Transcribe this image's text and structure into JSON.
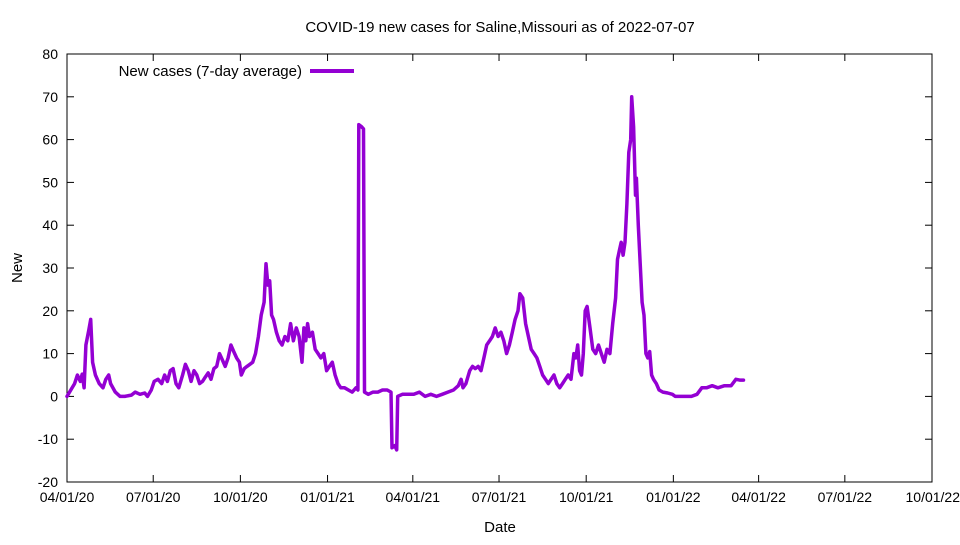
{
  "chart_data": {
    "type": "line",
    "title": "COVID-19 new cases for Saline,Missouri as of 2022-07-07",
    "xlabel": "Date",
    "ylabel": "New",
    "ylim": [
      -20,
      80
    ],
    "yticks": [
      -20,
      -10,
      0,
      10,
      20,
      30,
      40,
      50,
      60,
      70,
      80
    ],
    "xlim": [
      "2020-04-01",
      "2022-10-01"
    ],
    "xticks": [
      {
        "date": "2020-04-01",
        "label": "04/01/20"
      },
      {
        "date": "2020-07-01",
        "label": "07/01/20"
      },
      {
        "date": "2020-10-01",
        "label": "10/01/20"
      },
      {
        "date": "2021-01-01",
        "label": "01/01/21"
      },
      {
        "date": "2021-04-01",
        "label": "04/01/21"
      },
      {
        "date": "2021-07-01",
        "label": "07/01/21"
      },
      {
        "date": "2021-10-01",
        "label": "10/01/21"
      },
      {
        "date": "2022-01-01",
        "label": "01/01/22"
      },
      {
        "date": "2022-04-01",
        "label": "04/01/22"
      },
      {
        "date": "2022-07-01",
        "label": "07/01/22"
      },
      {
        "date": "2022-10-01",
        "label": "10/01/22"
      }
    ],
    "grid": false,
    "legend_position": "top-left",
    "series": [
      {
        "name": "New cases (7-day average)",
        "color": "#9400d3",
        "points": [
          [
            "2020-04-01",
            0.0
          ],
          [
            "2020-04-05",
            1.5
          ],
          [
            "2020-04-09",
            3.0
          ],
          [
            "2020-04-12",
            5.0
          ],
          [
            "2020-04-15",
            3.5
          ],
          [
            "2020-04-17",
            5.2
          ],
          [
            "2020-04-19",
            2.0
          ],
          [
            "2020-04-21",
            12.0
          ],
          [
            "2020-04-24",
            15.5
          ],
          [
            "2020-04-26",
            18.0
          ],
          [
            "2020-04-28",
            8.0
          ],
          [
            "2020-05-01",
            5.0
          ],
          [
            "2020-05-05",
            3.0
          ],
          [
            "2020-05-09",
            2.0
          ],
          [
            "2020-05-12",
            4.0
          ],
          [
            "2020-05-15",
            5.0
          ],
          [
            "2020-05-17",
            3.0
          ],
          [
            "2020-05-22",
            1.0
          ],
          [
            "2020-05-27",
            0.0
          ],
          [
            "2020-06-01",
            0.0
          ],
          [
            "2020-06-08",
            0.3
          ],
          [
            "2020-06-12",
            1.0
          ],
          [
            "2020-06-17",
            0.5
          ],
          [
            "2020-06-22",
            0.8
          ],
          [
            "2020-06-25",
            0.0
          ],
          [
            "2020-06-29",
            1.5
          ],
          [
            "2020-07-02",
            3.5
          ],
          [
            "2020-07-06",
            4.0
          ],
          [
            "2020-07-10",
            3.0
          ],
          [
            "2020-07-13",
            5.0
          ],
          [
            "2020-07-16",
            3.5
          ],
          [
            "2020-07-19",
            6.0
          ],
          [
            "2020-07-22",
            6.5
          ],
          [
            "2020-07-25",
            3.0
          ],
          [
            "2020-07-28",
            2.0
          ],
          [
            "2020-08-01",
            5.0
          ],
          [
            "2020-08-04",
            7.5
          ],
          [
            "2020-08-07",
            6.0
          ],
          [
            "2020-08-10",
            3.5
          ],
          [
            "2020-08-13",
            6.0
          ],
          [
            "2020-08-16",
            5.0
          ],
          [
            "2020-08-19",
            3.0
          ],
          [
            "2020-08-22",
            3.5
          ],
          [
            "2020-08-25",
            4.5
          ],
          [
            "2020-08-28",
            5.5
          ],
          [
            "2020-08-31",
            4.0
          ],
          [
            "2020-09-03",
            6.5
          ],
          [
            "2020-09-06",
            7.0
          ],
          [
            "2020-09-09",
            10.0
          ],
          [
            "2020-09-12",
            8.5
          ],
          [
            "2020-09-15",
            7.0
          ],
          [
            "2020-09-18",
            9.0
          ],
          [
            "2020-09-21",
            12.0
          ],
          [
            "2020-09-24",
            10.5
          ],
          [
            "2020-09-27",
            9.0
          ],
          [
            "2020-09-30",
            8.0
          ],
          [
            "2020-10-02",
            5.0
          ],
          [
            "2020-10-05",
            6.5
          ],
          [
            "2020-10-08",
            7.0
          ],
          [
            "2020-10-11",
            7.5
          ],
          [
            "2020-10-14",
            8.0
          ],
          [
            "2020-10-17",
            10.0
          ],
          [
            "2020-10-20",
            14.0
          ],
          [
            "2020-10-23",
            19.0
          ],
          [
            "2020-10-26",
            22.0
          ],
          [
            "2020-10-28",
            31.0
          ],
          [
            "2020-10-30",
            26.0
          ],
          [
            "2020-11-01",
            27.0
          ],
          [
            "2020-11-03",
            19.0
          ],
          [
            "2020-11-05",
            18.0
          ],
          [
            "2020-11-08",
            15.0
          ],
          [
            "2020-11-11",
            13.0
          ],
          [
            "2020-11-14",
            12.0
          ],
          [
            "2020-11-17",
            14.0
          ],
          [
            "2020-11-20",
            13.0
          ],
          [
            "2020-11-23",
            17.0
          ],
          [
            "2020-11-26",
            13.0
          ],
          [
            "2020-11-29",
            16.0
          ],
          [
            "2020-12-02",
            14.0
          ],
          [
            "2020-12-05",
            8.0
          ],
          [
            "2020-12-07",
            16.0
          ],
          [
            "2020-12-09",
            13.0
          ],
          [
            "2020-12-11",
            17.0
          ],
          [
            "2020-12-13",
            14.0
          ],
          [
            "2020-12-16",
            15.0
          ],
          [
            "2020-12-19",
            11.0
          ],
          [
            "2020-12-22",
            10.0
          ],
          [
            "2020-12-25",
            9.0
          ],
          [
            "2020-12-28",
            10.0
          ],
          [
            "2020-12-31",
            6.0
          ],
          [
            "2021-01-03",
            7.0
          ],
          [
            "2021-01-06",
            8.0
          ],
          [
            "2021-01-09",
            5.0
          ],
          [
            "2021-01-12",
            3.0
          ],
          [
            "2021-01-15",
            2.0
          ],
          [
            "2021-01-19",
            2.0
          ],
          [
            "2021-01-23",
            1.5
          ],
          [
            "2021-01-27",
            1.0
          ],
          [
            "2021-01-31",
            2.0
          ],
          [
            "2021-02-02",
            1.5
          ],
          [
            "2021-02-03",
            63.5
          ],
          [
            "2021-02-06",
            63.0
          ],
          [
            "2021-02-08",
            62.5
          ],
          [
            "2021-02-09",
            1.0
          ],
          [
            "2021-02-13",
            0.5
          ],
          [
            "2021-02-18",
            1.0
          ],
          [
            "2021-02-23",
            1.0
          ],
          [
            "2021-02-28",
            1.5
          ],
          [
            "2021-03-05",
            1.5
          ],
          [
            "2021-03-09",
            1.0
          ],
          [
            "2021-03-10",
            -12.0
          ],
          [
            "2021-03-13",
            -11.5
          ],
          [
            "2021-03-15",
            -12.5
          ],
          [
            "2021-03-16",
            0.0
          ],
          [
            "2021-03-21",
            0.5
          ],
          [
            "2021-03-27",
            0.5
          ],
          [
            "2021-04-02",
            0.5
          ],
          [
            "2021-04-08",
            1.0
          ],
          [
            "2021-04-14",
            0.0
          ],
          [
            "2021-04-20",
            0.5
          ],
          [
            "2021-04-26",
            0.0
          ],
          [
            "2021-05-02",
            0.5
          ],
          [
            "2021-05-08",
            1.0
          ],
          [
            "2021-05-14",
            1.5
          ],
          [
            "2021-05-19",
            2.5
          ],
          [
            "2021-05-22",
            4.0
          ],
          [
            "2021-05-24",
            2.0
          ],
          [
            "2021-05-27",
            3.0
          ],
          [
            "2021-05-31",
            6.0
          ],
          [
            "2021-06-03",
            7.0
          ],
          [
            "2021-06-06",
            6.5
          ],
          [
            "2021-06-09",
            7.0
          ],
          [
            "2021-06-12",
            6.0
          ],
          [
            "2021-06-15",
            9.0
          ],
          [
            "2021-06-18",
            12.0
          ],
          [
            "2021-06-21",
            13.0
          ],
          [
            "2021-06-24",
            14.0
          ],
          [
            "2021-06-27",
            16.0
          ],
          [
            "2021-06-30",
            14.0
          ],
          [
            "2021-07-03",
            15.0
          ],
          [
            "2021-07-06",
            13.0
          ],
          [
            "2021-07-09",
            10.0
          ],
          [
            "2021-07-12",
            12.0
          ],
          [
            "2021-07-15",
            15.0
          ],
          [
            "2021-07-18",
            18.0
          ],
          [
            "2021-07-21",
            20.0
          ],
          [
            "2021-07-23",
            24.0
          ],
          [
            "2021-07-26",
            23.0
          ],
          [
            "2021-07-29",
            17.0
          ],
          [
            "2021-08-01",
            14.0
          ],
          [
            "2021-08-04",
            11.0
          ],
          [
            "2021-08-07",
            10.0
          ],
          [
            "2021-08-10",
            9.0
          ],
          [
            "2021-08-13",
            7.0
          ],
          [
            "2021-08-16",
            5.0
          ],
          [
            "2021-08-19",
            4.0
          ],
          [
            "2021-08-22",
            3.0
          ],
          [
            "2021-08-25",
            4.0
          ],
          [
            "2021-08-28",
            5.0
          ],
          [
            "2021-08-31",
            3.0
          ],
          [
            "2021-09-03",
            2.0
          ],
          [
            "2021-09-06",
            3.0
          ],
          [
            "2021-09-09",
            4.0
          ],
          [
            "2021-09-12",
            5.0
          ],
          [
            "2021-09-15",
            4.0
          ],
          [
            "2021-09-18",
            10.0
          ],
          [
            "2021-09-20",
            9.0
          ],
          [
            "2021-09-22",
            12.0
          ],
          [
            "2021-09-24",
            6.0
          ],
          [
            "2021-09-26",
            5.0
          ],
          [
            "2021-09-28",
            10.0
          ],
          [
            "2021-09-30",
            20.0
          ],
          [
            "2021-10-02",
            21.0
          ],
          [
            "2021-10-05",
            16.0
          ],
          [
            "2021-10-08",
            11.0
          ],
          [
            "2021-10-11",
            10.0
          ],
          [
            "2021-10-14",
            12.0
          ],
          [
            "2021-10-17",
            10.0
          ],
          [
            "2021-10-20",
            8.0
          ],
          [
            "2021-10-23",
            11.0
          ],
          [
            "2021-10-26",
            10.0
          ],
          [
            "2021-10-29",
            17.0
          ],
          [
            "2021-11-01",
            23.0
          ],
          [
            "2021-11-03",
            32.0
          ],
          [
            "2021-11-05",
            34.0
          ],
          [
            "2021-11-07",
            36.0
          ],
          [
            "2021-11-09",
            33.0
          ],
          [
            "2021-11-11",
            36.0
          ],
          [
            "2021-11-13",
            45.0
          ],
          [
            "2021-11-15",
            57.0
          ],
          [
            "2021-11-17",
            60.0
          ],
          [
            "2021-11-18",
            70.0
          ],
          [
            "2021-11-20",
            63.0
          ],
          [
            "2021-11-22",
            47.0
          ],
          [
            "2021-11-23",
            51.0
          ],
          [
            "2021-11-25",
            40.0
          ],
          [
            "2021-11-27",
            31.0
          ],
          [
            "2021-11-29",
            22.0
          ],
          [
            "2021-12-01",
            19.0
          ],
          [
            "2021-12-03",
            10.0
          ],
          [
            "2021-12-05",
            9.0
          ],
          [
            "2021-12-07",
            10.5
          ],
          [
            "2021-12-09",
            5.0
          ],
          [
            "2021-12-11",
            4.0
          ],
          [
            "2021-12-14",
            3.0
          ],
          [
            "2021-12-17",
            1.5
          ],
          [
            "2021-12-21",
            1.0
          ],
          [
            "2021-12-26",
            0.8
          ],
          [
            "2021-12-31",
            0.5
          ],
          [
            "2022-01-03",
            0.0
          ],
          [
            "2022-01-10",
            0.0
          ],
          [
            "2022-01-20",
            0.0
          ],
          [
            "2022-01-26",
            0.5
          ],
          [
            "2022-01-31",
            2.0
          ],
          [
            "2022-02-05",
            2.0
          ],
          [
            "2022-02-11",
            2.5
          ],
          [
            "2022-02-17",
            2.0
          ],
          [
            "2022-02-24",
            2.5
          ],
          [
            "2022-03-03",
            2.5
          ],
          [
            "2022-03-08",
            4.0
          ],
          [
            "2022-03-12",
            3.8
          ],
          [
            "2022-03-16",
            3.8
          ]
        ]
      }
    ]
  }
}
